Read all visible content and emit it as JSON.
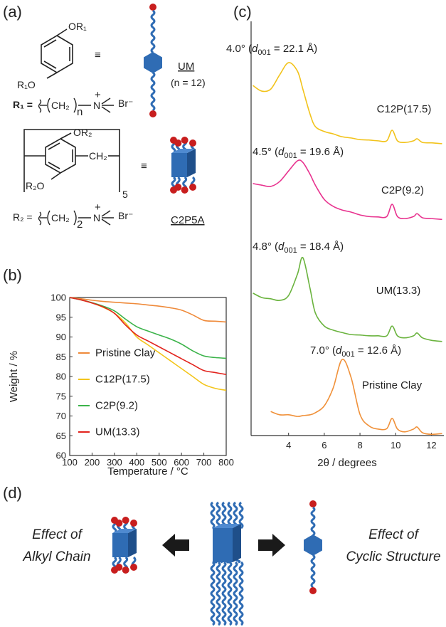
{
  "panel_labels": {
    "a": "(a)",
    "b": "(b)",
    "c": "(c)",
    "d": "(d)"
  },
  "panel_a": {
    "monomer": {
      "substituent_top": "OR₁",
      "substituent_bottom": "R₁O",
      "equivalence": "≡",
      "name": "UM",
      "note": "(n = 12)"
    },
    "r1": {
      "label": "R₁ =",
      "chain": "CH₂",
      "repeat": "n",
      "atom": "N",
      "charge": "+",
      "counterion": "Br⁻"
    },
    "macrocycle": {
      "substituent_top": "OR₂",
      "bridge": "CH₂",
      "substituent_bottom": "R₂O",
      "repeat": "5",
      "equivalence": "≡",
      "name": "C2P5A"
    },
    "r2": {
      "label": "R₂ =",
      "chain": "CH₂",
      "repeat": "2",
      "atom": "N",
      "charge": "+",
      "counterion": "Br⁻"
    }
  },
  "chart_data": [
    {
      "type": "line",
      "x_label": "Temperature / °C",
      "y_label": "Weight / %",
      "x": [
        100,
        150,
        200,
        250,
        300,
        350,
        400,
        450,
        500,
        550,
        600,
        650,
        700,
        750,
        800
      ],
      "xlim": [
        100,
        800
      ],
      "ylim": [
        60,
        100
      ],
      "xticks": [
        100,
        200,
        300,
        400,
        500,
        600,
        700,
        800
      ],
      "yticks": [
        60,
        65,
        70,
        75,
        80,
        85,
        90,
        95,
        100
      ],
      "legend": "left",
      "frame": true,
      "series": [
        {
          "name": "Pristine Clay",
          "color": "#ef8a3a",
          "values": [
            100,
            99.7,
            99.3,
            99.0,
            98.8,
            98.6,
            98.4,
            98.1,
            97.8,
            97.4,
            96.8,
            95.6,
            94.2,
            94.0,
            93.8
          ]
        },
        {
          "name": "C12P(17.5)",
          "color": "#f3c51c",
          "values": [
            100,
            99.4,
            98.6,
            97.5,
            96.0,
            93.5,
            90.0,
            88.0,
            86.0,
            84.0,
            82.0,
            80.0,
            78.0,
            77.0,
            76.5
          ]
        },
        {
          "name": "C2P(9.2)",
          "color": "#3bb34a",
          "values": [
            100,
            99.4,
            98.7,
            97.8,
            96.6,
            94.5,
            92.6,
            91.5,
            90.5,
            89.5,
            88.2,
            86.5,
            85.2,
            84.8,
            84.6
          ]
        },
        {
          "name": "UM(13.3)",
          "color": "#e2231d",
          "values": [
            100,
            99.4,
            98.6,
            97.6,
            96.0,
            93.0,
            90.5,
            89.0,
            87.5,
            86.0,
            84.5,
            83.0,
            81.5,
            81.0,
            80.5
          ]
        }
      ]
    },
    {
      "type": "line",
      "x_label": "2θ / degrees",
      "x": [
        2,
        2.5,
        3,
        3.5,
        4,
        4.5,
        4.8,
        5.2,
        5.5,
        6,
        6.5,
        7,
        7.5,
        8,
        8.5,
        9,
        9.5,
        9.8,
        10.1,
        10.5,
        11,
        11.2,
        11.5,
        12,
        12.6
      ],
      "xlim": [
        1.9,
        12.7
      ],
      "ylim": [
        0,
        100
      ],
      "xticks": [
        4,
        6,
        8,
        10,
        12
      ],
      "frame": false,
      "series": [
        {
          "name": "C12P(17.5)",
          "color": "#f2c31b",
          "values": [
            86.0,
            84.6,
            85.1,
            88.6,
            91.6,
            89.5,
            85.1,
            79.0,
            75.9,
            74.7,
            74.1,
            73.4,
            73.1,
            72.7,
            72.6,
            72.4,
            72.4,
            75.0,
            72.4,
            72.0,
            72.4,
            72.9,
            72.0,
            71.9,
            71.7
          ]
        },
        {
          "name": "C2P(9.2)",
          "color": "#e8338f",
          "values": [
            61.9,
            61.5,
            61.2,
            62.4,
            65.0,
            67.5,
            67.1,
            64.2,
            61.5,
            58.0,
            56.3,
            55.4,
            54.9,
            54.2,
            53.8,
            53.7,
            53.8,
            56.8,
            53.8,
            53.3,
            53.8,
            54.5,
            53.5,
            53.3,
            53.1
          ]
        },
        {
          "name": "UM(13.3)",
          "color": "#6ab33e",
          "values": [
            35.0,
            33.9,
            33.6,
            33.2,
            34.4,
            39.7,
            43.7,
            36.2,
            30.1,
            26.9,
            25.9,
            25.3,
            24.8,
            24.7,
            24.5,
            24.5,
            24.5,
            26.9,
            24.5,
            24.0,
            24.5,
            25.2,
            24.0,
            23.4,
            23.1
          ]
        },
        {
          "name": "Pristine Clay",
          "color": "#f0913a",
          "values": [
            null,
            null,
            5.9,
            5.1,
            5.1,
            4.7,
            4.9,
            5.1,
            5.6,
            7.3,
            11.7,
            18.7,
            14.3,
            5.2,
            2.4,
            1.6,
            1.7,
            4.2,
            1.6,
            0.9,
            1.6,
            2.1,
            0.7,
            0.3,
            0.5
          ]
        }
      ],
      "annotations": [
        {
          "prefix": "4.0° (",
          "symbol": "d",
          "subscript": "001",
          "suffix": " = 22.1 Å)"
        },
        {
          "prefix": "4.5° (",
          "symbol": "d",
          "subscript": "001",
          "suffix": " = 19.6 Å)"
        },
        {
          "prefix": "4.8° (",
          "symbol": "d",
          "subscript": "001",
          "suffix": " = 18.4 Å)"
        },
        {
          "prefix": "7.0° (",
          "symbol": "d",
          "subscript": "001",
          "suffix": " = 12.6 Å)"
        }
      ]
    }
  ],
  "panel_d": {
    "left_label": [
      "Effect of",
      "Alkyl Chain"
    ],
    "right_label": [
      "Effect of",
      "Cyclic Structure"
    ]
  }
}
